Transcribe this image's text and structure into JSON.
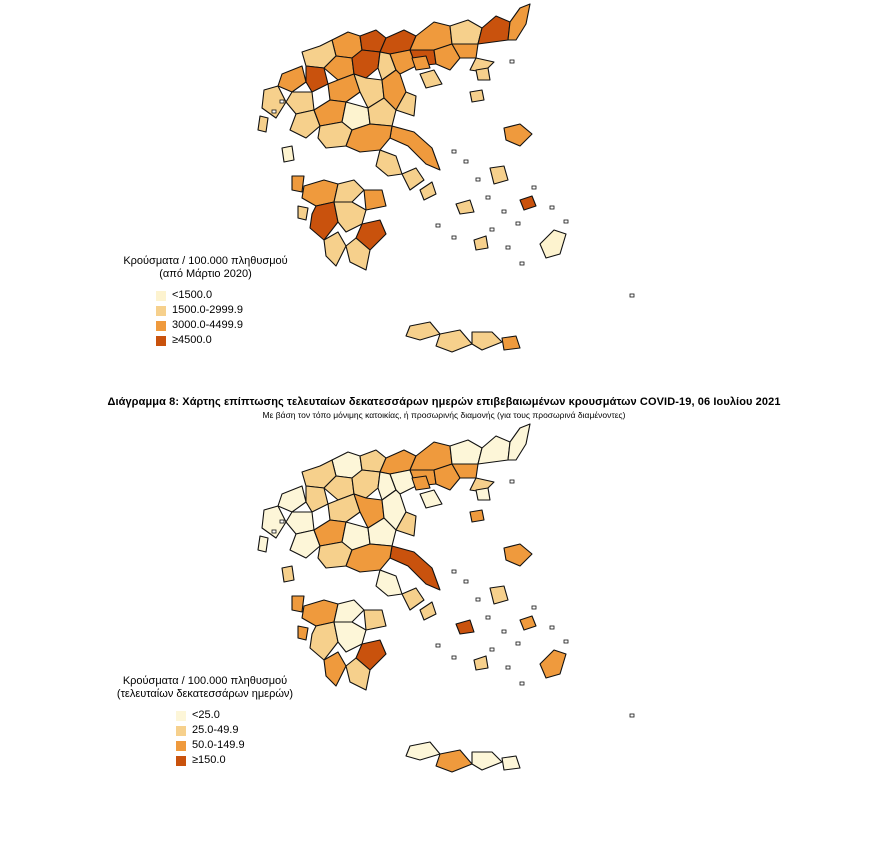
{
  "top_map": {
    "legend_title_line1": "Κρούσματα / 100.000 πληθυσμού",
    "legend_title_line2": "(από Μάρτιο 2020)",
    "legend": [
      {
        "label": "<1500.0",
        "color": "#fdf3cf"
      },
      {
        "label": "1500.0-2999.9",
        "color": "#f6d08c"
      },
      {
        "label": "3000.0-4499.9",
        "color": "#ef9a3d"
      },
      {
        "label": "≥4500.0",
        "color": "#c9520d"
      }
    ]
  },
  "caption": {
    "title": "Διάγραμμα 8: Χάρτης επίπτωσης τελευταίων δεκατεσσάρων ημερών επιβεβαιωμένων κρουσμάτων COVID-19, 06 Ιουλίου 2021",
    "subtitle": "Με βάση τον τόπο μόνιμης κατοικίας, ή προσωρινής διαμονής (για τους προσωρινά διαμένοντες)"
  },
  "bottom_map": {
    "legend_title_line1": "Κρούσματα / 100.000 πληθυσμού",
    "legend_title_line2": "(τελευταίων δεκατεσσάρων ημερών)",
    "legend": [
      {
        "label": "<25.0",
        "color": "#fdf6d8"
      },
      {
        "label": "25.0-49.9",
        "color": "#f6d08c"
      },
      {
        "label": "50.0-149.9",
        "color": "#ef9a3d"
      },
      {
        "label": "≥150.0",
        "color": "#c9520d"
      }
    ]
  },
  "top_region_classes": [
    2,
    3,
    3,
    2,
    1,
    3,
    2,
    1,
    2,
    3,
    1,
    2,
    3,
    2,
    2,
    1,
    1,
    2,
    3,
    1,
    1,
    2,
    1,
    2,
    1,
    1,
    2,
    0,
    1,
    1,
    2,
    2,
    1,
    1,
    1,
    2,
    1,
    3,
    1,
    3,
    1,
    1,
    2,
    1,
    0,
    2,
    1,
    2,
    1,
    1,
    2,
    1,
    1,
    1,
    0,
    3,
    1,
    1,
    1
  ],
  "bottom_region_classes": [
    0,
    1,
    2,
    2,
    0,
    0,
    0,
    1,
    1,
    1,
    0,
    0,
    2,
    2,
    2,
    1,
    0,
    0,
    1,
    0,
    0,
    1,
    2,
    0,
    1,
    0,
    2,
    0,
    0,
    1,
    3,
    2,
    0,
    1,
    1,
    2,
    0,
    1,
    0,
    3,
    2,
    1,
    1,
    0,
    1,
    2,
    2,
    2,
    0,
    2,
    2,
    1,
    3,
    1,
    2,
    2,
    0,
    2,
    0
  ]
}
